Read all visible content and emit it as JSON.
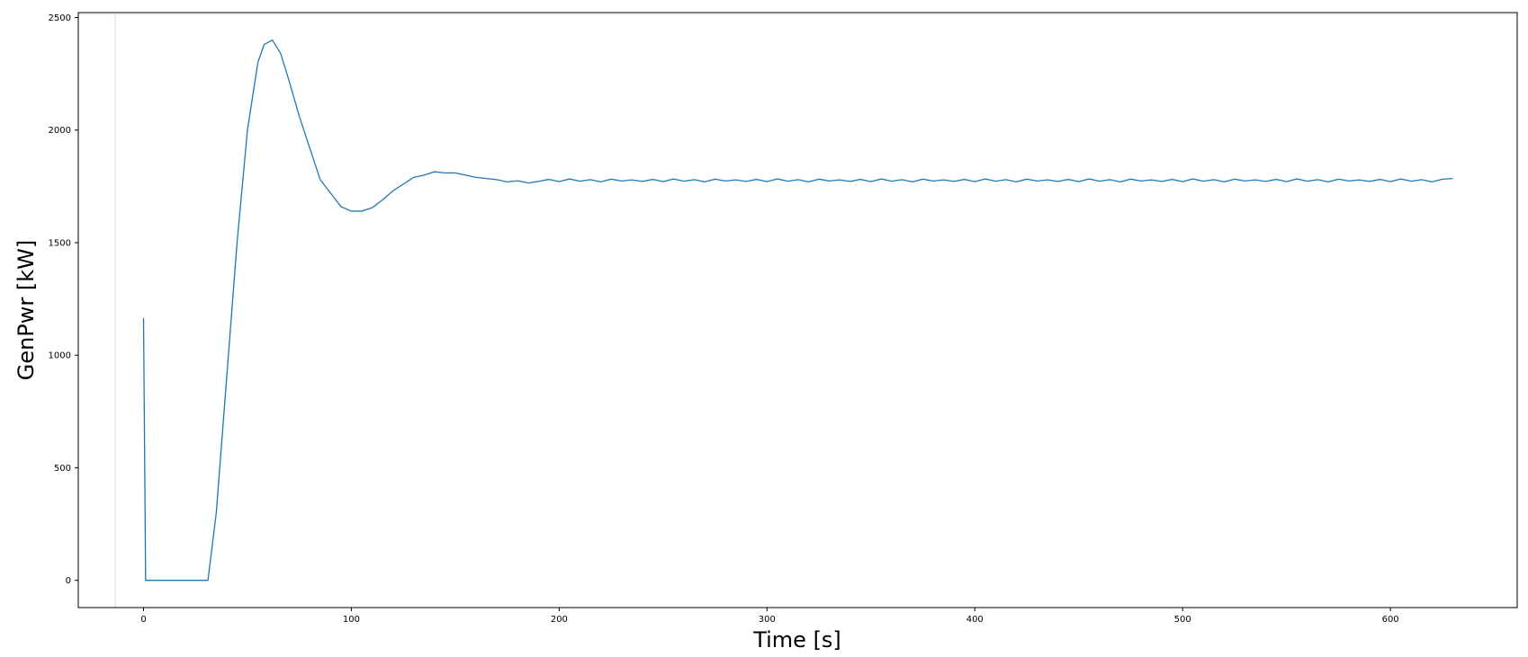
{
  "chart_data": {
    "type": "line",
    "x_label": "Time [s]",
    "y_label": "GenPwr [kW]",
    "color": "#1f77b4",
    "grid": false,
    "xlim": [
      -31.4,
      661
    ],
    "ylim": [
      -121,
      2522
    ],
    "xticks": [
      0,
      100,
      200,
      300,
      400,
      500,
      600
    ],
    "yticks": [
      0,
      500,
      1000,
      1500,
      2000,
      2500
    ],
    "x": [
      0,
      1,
      5,
      10,
      15,
      20,
      25,
      30,
      31,
      35,
      40,
      45,
      50,
      55,
      58,
      62,
      66,
      70,
      75,
      80,
      85,
      90,
      95,
      100,
      105,
      110,
      115,
      120,
      125,
      130,
      135,
      140,
      145,
      150,
      155,
      160,
      165,
      170,
      175,
      180,
      185,
      190,
      195,
      200,
      205,
      210,
      215,
      220,
      225,
      230,
      235,
      240,
      245,
      250,
      255,
      260,
      265,
      270,
      275,
      280,
      285,
      290,
      295,
      300,
      305,
      310,
      315,
      320,
      325,
      330,
      335,
      340,
      345,
      350,
      355,
      360,
      365,
      370,
      375,
      380,
      385,
      390,
      395,
      400,
      405,
      410,
      415,
      420,
      425,
      430,
      435,
      440,
      445,
      450,
      455,
      460,
      465,
      470,
      475,
      480,
      485,
      490,
      495,
      500,
      505,
      510,
      515,
      520,
      525,
      530,
      535,
      540,
      545,
      550,
      555,
      560,
      565,
      570,
      575,
      580,
      585,
      590,
      595,
      600,
      605,
      610,
      615,
      620,
      625,
      630
    ],
    "values": [
      1165,
      0,
      0,
      0,
      0,
      0,
      0,
      0,
      0,
      300,
      900,
      1500,
      2000,
      2300,
      2380,
      2400,
      2340,
      2220,
      2060,
      1920,
      1780,
      1720,
      1660,
      1640,
      1640,
      1655,
      1690,
      1730,
      1760,
      1790,
      1800,
      1815,
      1810,
      1810,
      1800,
      1790,
      1785,
      1780,
      1770,
      1775,
      1765,
      1772,
      1781,
      1771,
      1783,
      1773,
      1780,
      1770,
      1782,
      1774,
      1779,
      1772,
      1781,
      1771,
      1783,
      1773,
      1780,
      1770,
      1782,
      1774,
      1779,
      1772,
      1781,
      1771,
      1783,
      1773,
      1780,
      1770,
      1782,
      1774,
      1779,
      1772,
      1781,
      1771,
      1783,
      1773,
      1780,
      1770,
      1782,
      1774,
      1779,
      1772,
      1781,
      1771,
      1783,
      1773,
      1780,
      1770,
      1782,
      1774,
      1779,
      1772,
      1781,
      1771,
      1783,
      1773,
      1780,
      1770,
      1782,
      1774,
      1779,
      1772,
      1781,
      1771,
      1783,
      1773,
      1780,
      1770,
      1782,
      1774,
      1779,
      1772,
      1781,
      1771,
      1783,
      1773,
      1780,
      1770,
      1782,
      1774,
      1779,
      1772,
      1781,
      1771,
      1783,
      1773,
      1780,
      1770,
      1782,
      1785
    ]
  }
}
